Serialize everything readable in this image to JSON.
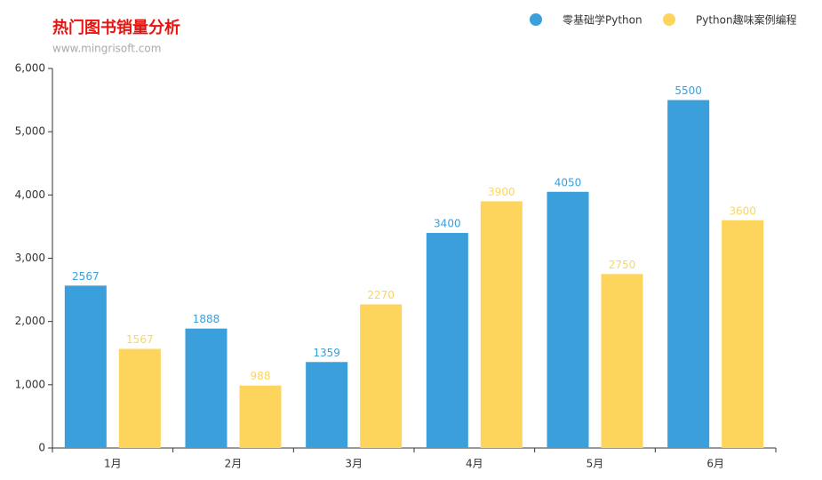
{
  "chart_data": {
    "type": "bar",
    "title": "热门图书销量分析",
    "subtitle": "www.mingrisoft.com",
    "categories": [
      "1月",
      "2月",
      "3月",
      "4月",
      "5月",
      "6月"
    ],
    "series": [
      {
        "name": "零基础学Python",
        "color": "#3a9fda",
        "values": [
          2567,
          1888,
          1359,
          3400,
          4050,
          5500
        ]
      },
      {
        "name": "Python趣味案例编程",
        "color": "#fdd55c",
        "values": [
          1567,
          988,
          2270,
          3900,
          2750,
          3600
        ]
      }
    ],
    "ylim": [
      0,
      6000
    ],
    "yticks": [
      0,
      {
        "value": 1000,
        "label": "1,000"
      },
      {
        "value": 2000,
        "label": "2,000"
      },
      {
        "value": 3000,
        "label": "3,000"
      },
      {
        "value": 4000,
        "label": "4,000"
      },
      {
        "value": 5000,
        "label": "5,000"
      },
      {
        "value": 6000,
        "label": "6,000"
      }
    ],
    "grid": false,
    "legend": "top-right"
  }
}
